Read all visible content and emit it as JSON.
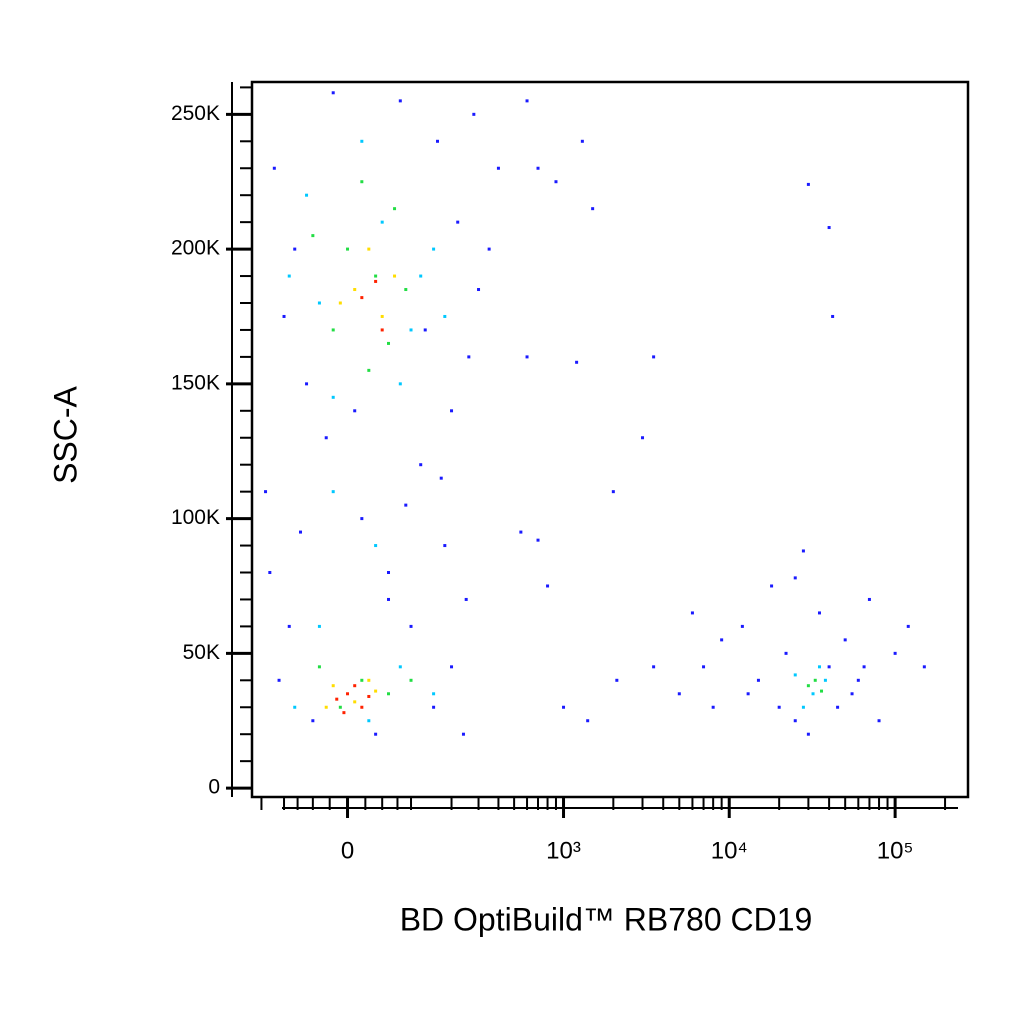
{
  "chart_data": {
    "type": "scatter",
    "x_label": "BD OptiBuild™ RB780 CD19",
    "y_label": "SSC-A",
    "xscale": "biexponential",
    "xlim": [
      -175,
      275000
    ],
    "ylim": [
      -3300,
      262000
    ],
    "xticks": [
      0,
      {
        "value": 1000,
        "label": "10³"
      },
      {
        "value": 10000,
        "label": "10⁴"
      },
      {
        "value": 100000,
        "label": "10⁵"
      }
    ],
    "xminorticks": [
      -150,
      -100,
      -75,
      -50,
      -25,
      25,
      50,
      75,
      100,
      200,
      300,
      400,
      500,
      600,
      700,
      800,
      900,
      2000,
      3000,
      4000,
      5000,
      6000,
      7000,
      8000,
      9000,
      20000,
      30000,
      40000,
      50000,
      60000,
      70000,
      80000,
      90000,
      200000
    ],
    "yticks": [
      {
        "value": 0,
        "label": "0"
      },
      {
        "value": 50000,
        "label": "50K"
      },
      {
        "value": 100000,
        "label": "100K"
      },
      {
        "value": 150000,
        "label": "150K"
      },
      {
        "value": 200000,
        "label": "200K"
      },
      {
        "value": 250000,
        "label": "250K"
      }
    ],
    "yminorticks": [
      10000,
      20000,
      30000,
      40000,
      60000,
      70000,
      80000,
      90000,
      110000,
      120000,
      130000,
      140000,
      160000,
      170000,
      180000,
      190000,
      210000,
      220000,
      230000,
      240000,
      260000
    ],
    "series": [
      {
        "color": "#1a1aff",
        "x": [
          -120,
          -80,
          -60,
          -140,
          -90,
          -110,
          -50,
          40,
          150,
          200,
          250,
          180,
          120,
          200,
          260,
          300,
          220,
          160,
          80,
          -20,
          -100,
          -130,
          20,
          60,
          100,
          -30,
          350,
          400,
          280,
          130,
          60,
          -70,
          10,
          90,
          170,
          240,
          600,
          700,
          900,
          1300,
          1500,
          600,
          1200,
          3500,
          3000,
          2000,
          550,
          700,
          800,
          1000,
          1400,
          2100,
          3500,
          5000,
          12000,
          15000,
          18000,
          20000,
          22000,
          25000,
          28000,
          30000,
          35000,
          40000,
          45000,
          50000,
          60000,
          70000,
          80000,
          100000,
          120000,
          150000,
          9000,
          7000,
          8000,
          25000,
          30000,
          40000,
          42000,
          6000,
          13000,
          55000,
          65000
        ],
        "values": [
          230000,
          200000,
          150000,
          110000,
          60000,
          40000,
          25000,
          20000,
          30000,
          45000,
          70000,
          90000,
          120000,
          140000,
          160000,
          185000,
          210000,
          240000,
          255000,
          258000,
          175000,
          80000,
          100000,
          80000,
          60000,
          130000,
          200000,
          230000,
          250000,
          170000,
          70000,
          95000,
          140000,
          105000,
          115000,
          20000,
          255000,
          230000,
          225000,
          240000,
          215000,
          160000,
          158000,
          160000,
          130000,
          110000,
          95000,
          92000,
          75000,
          30000,
          25000,
          40000,
          45000,
          35000,
          60000,
          40000,
          75000,
          30000,
          50000,
          25000,
          88000,
          20000,
          65000,
          45000,
          30000,
          55000,
          40000,
          70000,
          25000,
          50000,
          60000,
          45000,
          55000,
          45000,
          30000,
          78000,
          224000,
          208000,
          175000,
          65000,
          35000,
          35000,
          45000
        ]
      },
      {
        "color": "#00c8ff",
        "x": [
          -40,
          50,
          80,
          120,
          -60,
          20,
          150,
          -20,
          100,
          40,
          -40,
          80,
          150,
          -80,
          30,
          -20,
          180,
          -90,
          25000,
          32000,
          38000,
          28000,
          35000
        ],
        "values": [
          180000,
          210000,
          150000,
          190000,
          220000,
          240000,
          200000,
          145000,
          170000,
          90000,
          60000,
          45000,
          35000,
          30000,
          25000,
          110000,
          175000,
          190000,
          42000,
          35000,
          40000,
          30000,
          45000
        ]
      },
      {
        "color": "#22dd44",
        "x": [
          0,
          40,
          -20,
          70,
          20,
          60,
          90,
          -50,
          30,
          -40,
          20,
          60,
          -10,
          100,
          30000,
          33000,
          36000
        ],
        "values": [
          200000,
          190000,
          170000,
          215000,
          225000,
          165000,
          185000,
          205000,
          155000,
          45000,
          40000,
          35000,
          30000,
          40000,
          38000,
          40000,
          36000
        ]
      },
      {
        "color": "#ffdd00",
        "x": [
          10,
          50,
          30,
          70,
          -10,
          -20,
          10,
          40,
          -30,
          30
        ],
        "values": [
          185000,
          175000,
          200000,
          190000,
          180000,
          38000,
          32000,
          36000,
          30000,
          40000
        ]
      },
      {
        "color": "#ff2200",
        "x": [
          20,
          40,
          50,
          0,
          -15,
          20,
          10,
          -5,
          30
        ],
        "values": [
          182000,
          188000,
          170000,
          35000,
          33000,
          30000,
          38000,
          28000,
          34000
        ]
      }
    ]
  }
}
